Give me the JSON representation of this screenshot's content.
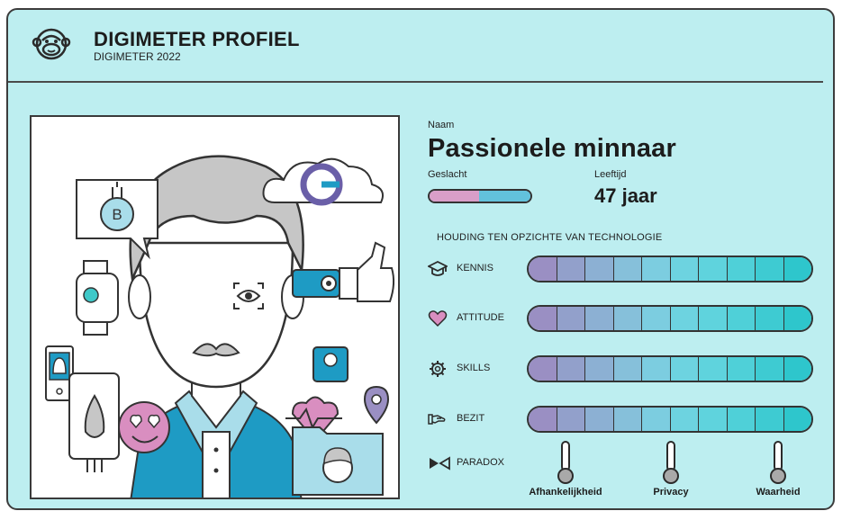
{
  "header": {
    "title": "DIGIMETER PROFIEL",
    "subtitle": "DIGIMETER 2022",
    "logo_icon": "monkey-face-icon"
  },
  "profile": {
    "name_label": "Naam",
    "name": "Passionele minnaar",
    "gender_label": "Geslacht",
    "gender_split": {
      "female_fraction": 0.49,
      "male_fraction": 0.51,
      "female_color": "#d99ec8",
      "male_color": "#62c2dc"
    },
    "age_label": "Leeftijd",
    "age": "47 jaar"
  },
  "attitudes": {
    "section_title": "HOUDING TEN OPZICHTE VAN TECHNOLOGIE",
    "rows": [
      {
        "label": "KENNIS",
        "icon": "graduation-cap-icon",
        "segments": 10
      },
      {
        "label": "ATTITUDE",
        "icon": "heart-icon",
        "segments": 10
      },
      {
        "label": "SKILLS",
        "icon": "gear-icon",
        "segments": 10
      },
      {
        "label": "BEZIT",
        "icon": "handshake-icon",
        "segments": 10
      }
    ],
    "scale_colors": [
      "#9a8fc3",
      "#92a0cb",
      "#8cb0d3",
      "#86c0da",
      "#7ccde0",
      "#6dd3e0",
      "#5fd3dd",
      "#4fd0d8",
      "#3ecbd2",
      "#2ec6cc"
    ],
    "paradox": {
      "label": "PARADOX",
      "icon": "bowtie-icon",
      "items": [
        {
          "label": "Afhankelijkheid",
          "icon": "thermometer-icon"
        },
        {
          "label": "Privacy",
          "icon": "thermometer-icon"
        },
        {
          "label": "Waarheid",
          "icon": "thermometer-icon"
        }
      ]
    }
  },
  "colors": {
    "background": "#bdeef0",
    "outline": "#333333",
    "accent_blue": "#1e9bc4",
    "accent_pink": "#d98ec0",
    "hair_gray": "#c6c6c6"
  }
}
